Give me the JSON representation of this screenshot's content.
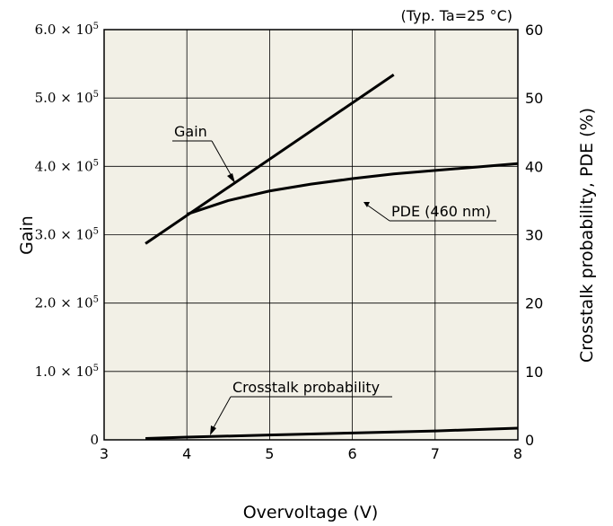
{
  "chart_data": {
    "type": "line",
    "note": "(Typ. Ta=25 °C)",
    "xlabel": "Overvoltage (V)",
    "ylabel_left": "Gain",
    "ylabel_right": "Crosstalk probability, PDE (%)",
    "xlim": [
      3,
      8
    ],
    "ylim_left": [
      0,
      600000
    ],
    "ylim_right": [
      0,
      60
    ],
    "x_ticks": [
      "3",
      "4",
      "5",
      "6",
      "7",
      "8"
    ],
    "y_left_ticks": [
      {
        "mant": "0",
        "exp": ""
      },
      {
        "mant": "1.0 × 10",
        "exp": "5"
      },
      {
        "mant": "2.0 × 10",
        "exp": "5"
      },
      {
        "mant": "3.0 × 10",
        "exp": "5"
      },
      {
        "mant": "4.0 × 10",
        "exp": "5"
      },
      {
        "mant": "5.0 × 10",
        "exp": "5"
      },
      {
        "mant": "6.0 × 10",
        "exp": "5"
      }
    ],
    "y_right_ticks": [
      "0",
      "10",
      "20",
      "30",
      "40",
      "50",
      "60"
    ],
    "grid": true,
    "series": [
      {
        "name": "Gain",
        "axis": "left",
        "x": [
          3.5,
          6.5
        ],
        "y": [
          287000,
          534000
        ]
      },
      {
        "name": "PDE (460 nm)",
        "axis": "right",
        "x": [
          4.0,
          4.5,
          5.0,
          5.5,
          6.0,
          6.5,
          7.0,
          7.5,
          8.0
        ],
        "y": [
          33.0,
          35.0,
          36.4,
          37.4,
          38.2,
          38.9,
          39.4,
          39.9,
          40.4
        ]
      },
      {
        "name": "Crosstalk probability",
        "axis": "right",
        "x": [
          3.5,
          4.0,
          5.0,
          6.0,
          7.0,
          8.0
        ],
        "y": [
          0.2,
          0.4,
          0.7,
          1.0,
          1.3,
          1.7
        ]
      }
    ]
  }
}
